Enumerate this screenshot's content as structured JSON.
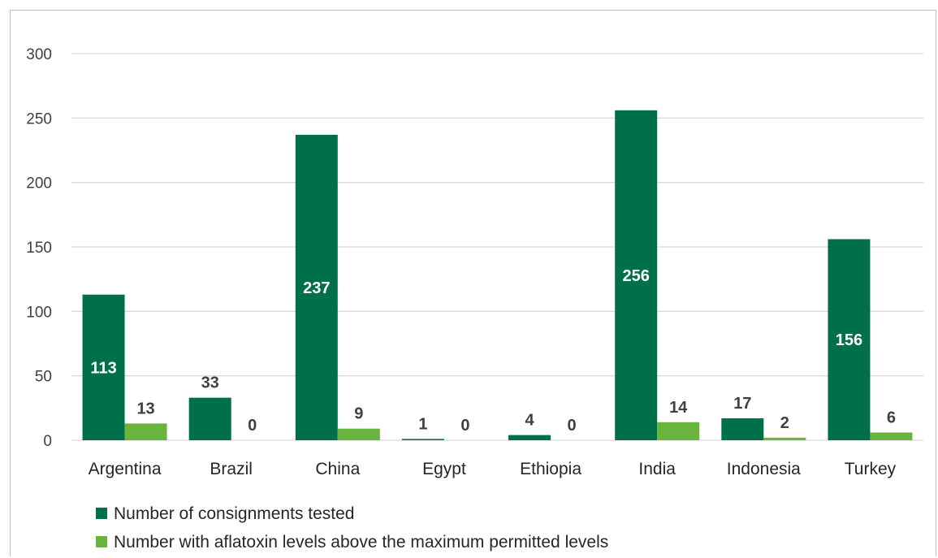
{
  "chart_data": {
    "type": "bar",
    "categories": [
      "Argentina",
      "Brazil",
      "China",
      "Egypt",
      "Ethiopia",
      "India",
      "Indonesia",
      "Turkey"
    ],
    "series": [
      {
        "name": "Number of consignments tested",
        "color": "#00704a",
        "values": [
          113,
          33,
          237,
          1,
          4,
          256,
          17,
          156
        ]
      },
      {
        "name": "Number with aflatoxin levels above the maximum permitted levels",
        "color": "#6ab43e",
        "values": [
          13,
          0,
          9,
          0,
          0,
          14,
          2,
          6
        ]
      }
    ],
    "ylim": [
      0,
      300
    ],
    "yticks": [
      0,
      50,
      100,
      150,
      200,
      250,
      300
    ],
    "grid": true,
    "legend": "bottom-left",
    "data_labels": true
  }
}
